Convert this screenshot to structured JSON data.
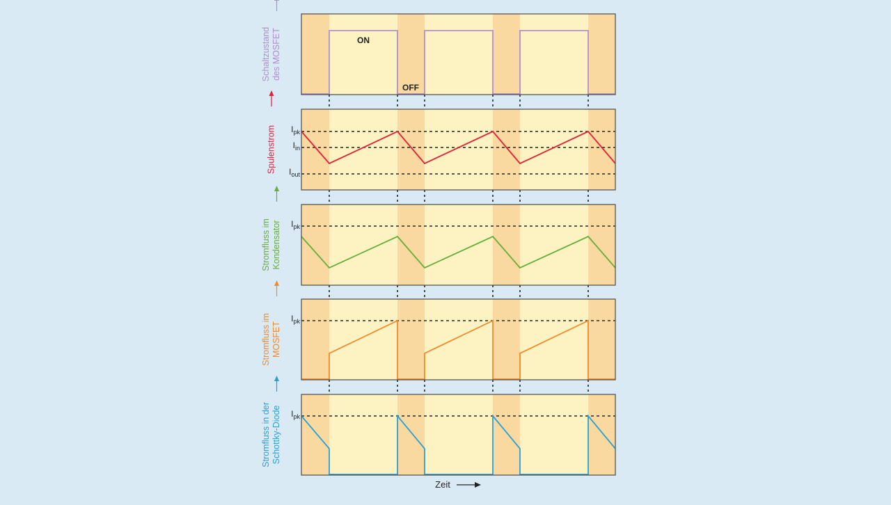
{
  "colors": {
    "page_bg": "#d9eaf5",
    "panel_bg": "#fdf3c2",
    "off_band": "#f9d9a0",
    "frame": "#4a4a4a",
    "mosfet_state": "#b08fcc",
    "inductor_current": "#e2203a",
    "capacitor_current": "#66ad3a",
    "mosfet_current": "#f08a2c",
    "diode_current": "#2a9fd6"
  },
  "panels": [
    {
      "id": "mosfet-state",
      "y_label_lines": [
        "Schaltzustand",
        "des MOSFET"
      ],
      "markers": [],
      "annotations": {
        "on": "ON",
        "off": "OFF"
      }
    },
    {
      "id": "inductor-current",
      "y_label_lines": [
        "Spulenstrom"
      ],
      "markers": [
        {
          "base": "I",
          "sub": "pk"
        },
        {
          "base": "I",
          "sub": "in"
        },
        {
          "base": "I",
          "sub": "out"
        }
      ]
    },
    {
      "id": "capacitor-current",
      "y_label_lines": [
        "Stromfluss im",
        "Kondensator"
      ],
      "markers": [
        {
          "base": "I",
          "sub": "pk"
        }
      ]
    },
    {
      "id": "mosfet-current",
      "y_label_lines": [
        "Stromfluss im",
        "MOSFET"
      ],
      "markers": [
        {
          "base": "I",
          "sub": "pk"
        }
      ]
    },
    {
      "id": "diode-current",
      "y_label_lines": [
        "Stromfluss in der",
        "Schottky-Diode"
      ],
      "markers": [
        {
          "base": "I",
          "sub": "pk"
        }
      ]
    }
  ],
  "x_axis_label": "Zeit"
}
